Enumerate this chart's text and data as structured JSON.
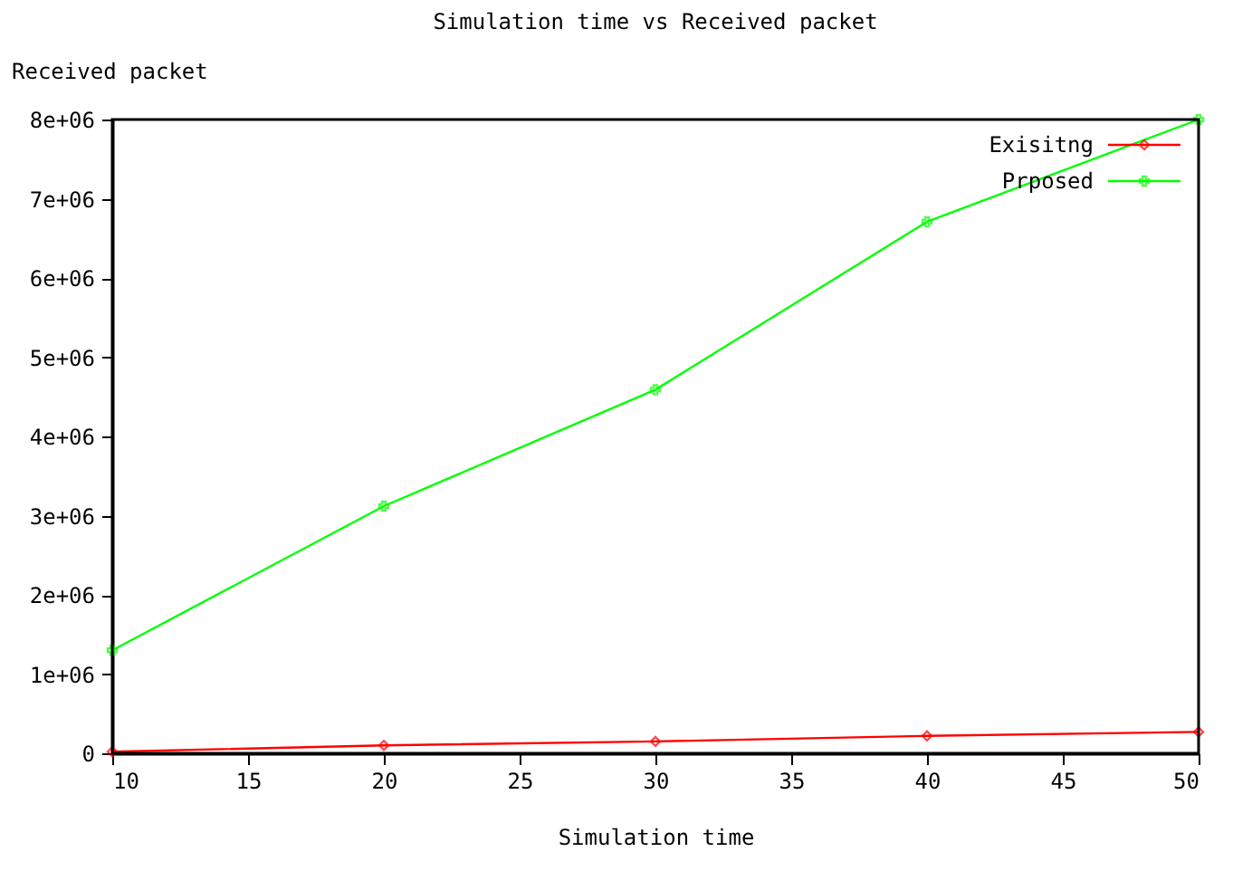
{
  "chart_data": {
    "type": "line",
    "title": "Simulation time vs Received packet",
    "xlabel": "Simulation time",
    "ylabel": "Received packet",
    "x": [
      10,
      20,
      30,
      40,
      50
    ],
    "series": [
      {
        "name": "Exisitng",
        "color": "#ff0000",
        "marker": "diamond",
        "values": [
          20000,
          100000,
          150000,
          220000,
          270000
        ]
      },
      {
        "name": "Prposed",
        "color": "#00ff00",
        "marker": "cross",
        "values": [
          1300000,
          3120000,
          4590000,
          6710000,
          8000000
        ]
      }
    ],
    "xlim": [
      10,
      50
    ],
    "xticks": [
      10,
      15,
      20,
      25,
      30,
      35,
      40,
      45,
      50
    ],
    "ylim": [
      0,
      8000000
    ],
    "yticks": [
      {
        "value": 0,
        "label": "0"
      },
      {
        "value": 1000000,
        "label": "1e+06"
      },
      {
        "value": 2000000,
        "label": "2e+06"
      },
      {
        "value": 3000000,
        "label": "3e+06"
      },
      {
        "value": 4000000,
        "label": "4e+06"
      },
      {
        "value": 5000000,
        "label": "5e+06"
      },
      {
        "value": 6000000,
        "label": "6e+06"
      },
      {
        "value": 7000000,
        "label": "7e+06"
      },
      {
        "value": 8000000,
        "label": "8e+06"
      }
    ],
    "grid": false,
    "legend": "top right",
    "line_style": "solid"
  }
}
